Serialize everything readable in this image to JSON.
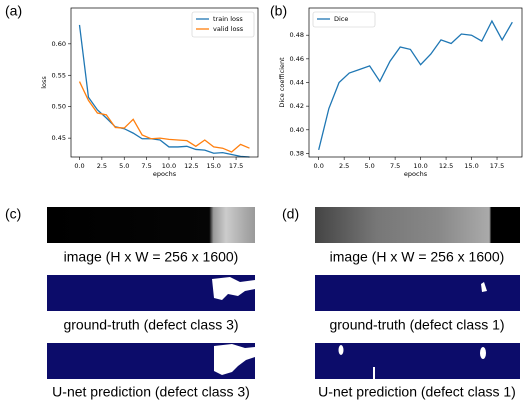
{
  "chart_data": [
    {
      "type": "line",
      "panel": "(a)",
      "xlabel": "epochs",
      "ylabel": "loss",
      "x": [
        0,
        1,
        2,
        3,
        4,
        5,
        6,
        7,
        8,
        9,
        10,
        11,
        12,
        13,
        14,
        15,
        16,
        17,
        18,
        19
      ],
      "series": [
        {
          "name": "train loss",
          "color": "#1f77b4",
          "values": [
            0.63,
            0.515,
            0.495,
            0.482,
            0.468,
            0.465,
            0.458,
            0.449,
            0.449,
            0.447,
            0.436,
            0.436,
            0.437,
            0.432,
            0.431,
            0.426,
            0.427,
            0.424,
            0.421,
            0.42
          ]
        },
        {
          "name": "valid loss",
          "color": "#ff7f0e",
          "values": [
            0.54,
            0.51,
            0.49,
            0.487,
            0.467,
            0.466,
            0.48,
            0.455,
            0.449,
            0.45,
            0.448,
            0.447,
            0.446,
            0.437,
            0.447,
            0.436,
            0.434,
            0.428,
            0.44,
            0.434
          ]
        }
      ],
      "xlim": [
        -0.95,
        19.95
      ],
      "xticks": [
        {
          "value": 0,
          "label": "0.0"
        },
        2.5,
        {
          "value": 5,
          "label": "5.0"
        },
        7.5,
        {
          "value": 10,
          "label": "10.0"
        },
        12.5,
        {
          "value": 15,
          "label": "15.0"
        },
        17.5
      ],
      "ylim": [
        0.42,
        0.657
      ],
      "yticks": [
        0.45,
        {
          "value": 0.5,
          "label": "0.50"
        },
        0.55,
        {
          "value": 0.6,
          "label": "0.60"
        }
      ],
      "legend": "upper right"
    },
    {
      "type": "line",
      "panel": "(b)",
      "xlabel": "epochs",
      "ylabel": "Dice coefficient",
      "x": [
        0,
        1,
        2,
        3,
        4,
        5,
        6,
        7,
        8,
        9,
        10,
        11,
        12,
        13,
        14,
        15,
        16,
        17,
        18,
        19
      ],
      "series": [
        {
          "name": "Dice",
          "color": "#1f77b4",
          "values": [
            0.383,
            0.418,
            0.44,
            0.448,
            0.451,
            0.454,
            0.441,
            0.458,
            0.47,
            0.468,
            0.455,
            0.464,
            0.476,
            0.473,
            0.481,
            0.48,
            0.475,
            0.492,
            0.476,
            0.491
          ]
        }
      ],
      "xlim": [
        -0.95,
        19.95
      ],
      "xticks": [
        {
          "value": 0,
          "label": "0.0"
        },
        2.5,
        {
          "value": 5,
          "label": "5.0"
        },
        7.5,
        {
          "value": 10,
          "label": "10.0"
        },
        12.5,
        {
          "value": 15,
          "label": "15.0"
        },
        17.5
      ],
      "ylim": [
        0.377,
        0.503
      ],
      "yticks": [
        0.38,
        {
          "value": 0.4,
          "label": "0.40"
        },
        0.42,
        0.44,
        0.46,
        0.48
      ],
      "legend": "upper left"
    }
  ],
  "panels": [
    {
      "label": "(c)",
      "image_caption": "image (H x W = 256 x 1600)",
      "truth_caption": "ground-truth (defect class 3)",
      "prediction_caption": "U-net prediction (defect class 3)"
    },
    {
      "label": "(d)",
      "image_caption": "image (H x W = 256 x 1600)",
      "truth_caption": "ground-truth (defect class 1)",
      "prediction_caption": "U-net prediction (defect class 1)"
    }
  ]
}
